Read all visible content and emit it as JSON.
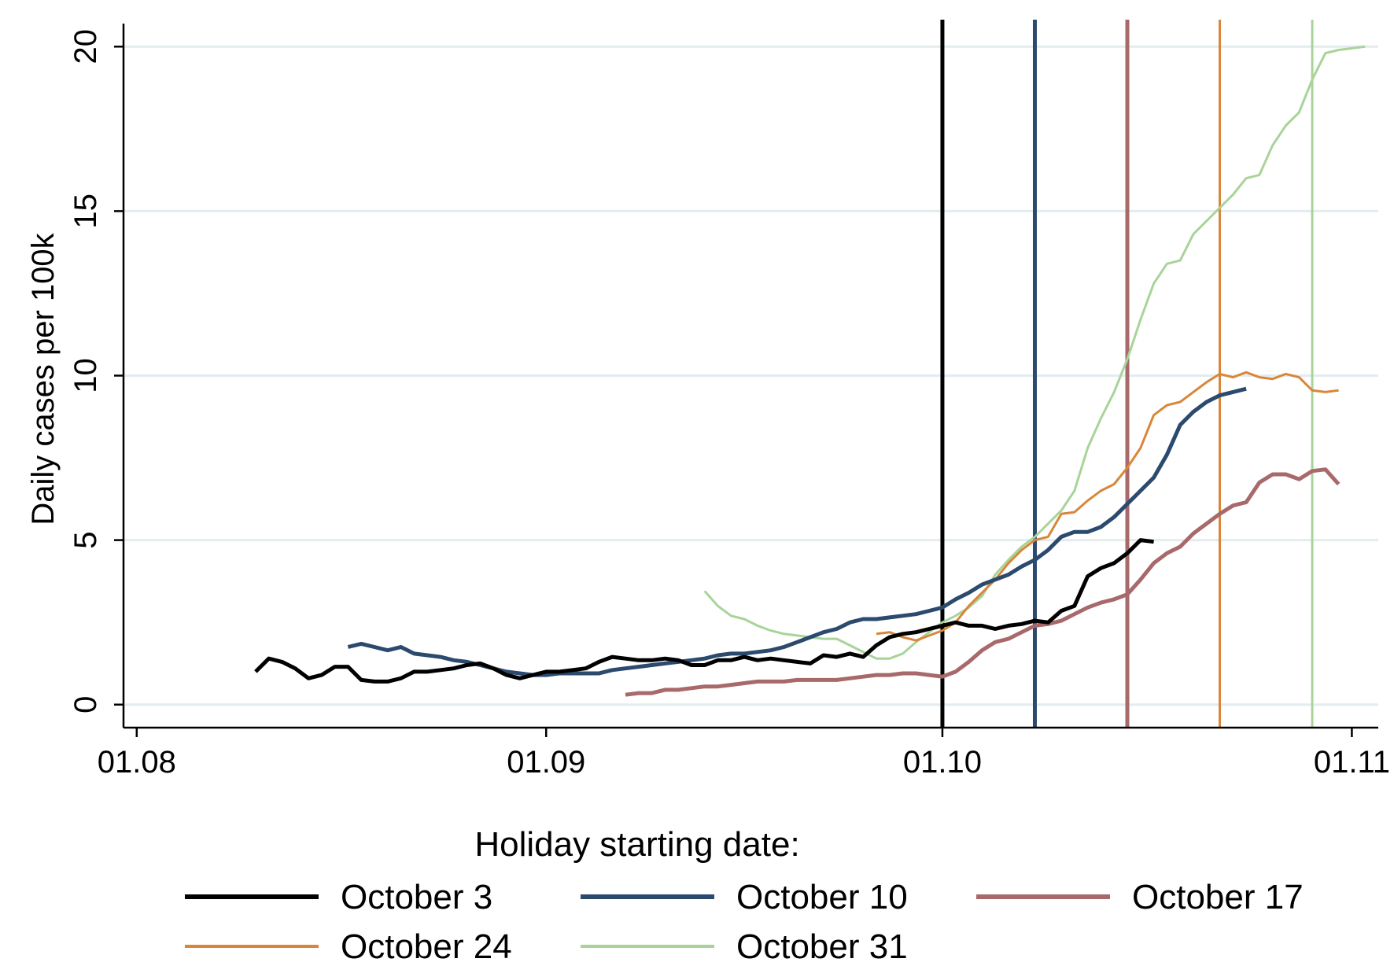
{
  "chart_data": {
    "type": "line",
    "title": "",
    "xlabel": "",
    "ylabel": "Daily cases per 100k",
    "x_ticks": [
      "01.08",
      "01.09",
      "01.10",
      "01.11"
    ],
    "xlim": [
      "2020-07-31",
      "2020-11-03"
    ],
    "ylim": [
      -0.7,
      20.7
    ],
    "y_ticks": [
      0,
      5,
      10,
      15,
      20
    ],
    "grid": "horizontal",
    "legend": {
      "title": "Holiday starting date:",
      "position": "bottom",
      "columns": 3
    },
    "vlines": [
      {
        "series": "October 3",
        "x": "2020-10-01"
      },
      {
        "series": "October 10",
        "x": "2020-10-08"
      },
      {
        "series": "October 17",
        "x": "2020-10-15"
      },
      {
        "series": "October 24",
        "x": "2020-10-22"
      },
      {
        "series": "October 31",
        "x": "2020-10-29"
      }
    ],
    "series": [
      {
        "name": "October 3",
        "color": "#000000",
        "width": 5,
        "x": [
          "2020-08-10",
          "2020-08-11",
          "2020-08-12",
          "2020-08-13",
          "2020-08-14",
          "2020-08-15",
          "2020-08-16",
          "2020-08-17",
          "2020-08-18",
          "2020-08-19",
          "2020-08-20",
          "2020-08-21",
          "2020-08-22",
          "2020-08-23",
          "2020-08-24",
          "2020-08-25",
          "2020-08-26",
          "2020-08-27",
          "2020-08-28",
          "2020-08-29",
          "2020-08-30",
          "2020-08-31",
          "2020-09-01",
          "2020-09-02",
          "2020-09-03",
          "2020-09-04",
          "2020-09-05",
          "2020-09-06",
          "2020-09-07",
          "2020-09-08",
          "2020-09-09",
          "2020-09-10",
          "2020-09-11",
          "2020-09-12",
          "2020-09-13",
          "2020-09-14",
          "2020-09-15",
          "2020-09-16",
          "2020-09-17",
          "2020-09-18",
          "2020-09-19",
          "2020-09-20",
          "2020-09-21",
          "2020-09-22",
          "2020-09-23",
          "2020-09-24",
          "2020-09-25",
          "2020-09-26",
          "2020-09-27",
          "2020-09-28",
          "2020-09-29",
          "2020-09-30",
          "2020-10-01",
          "2020-10-02",
          "2020-10-03",
          "2020-10-04",
          "2020-10-05",
          "2020-10-06",
          "2020-10-07",
          "2020-10-08",
          "2020-10-09",
          "2020-10-10",
          "2020-10-11",
          "2020-10-12",
          "2020-10-13",
          "2020-10-14",
          "2020-10-15",
          "2020-10-16",
          "2020-10-17"
        ],
        "y": [
          1.0,
          1.4,
          1.3,
          1.1,
          0.8,
          0.9,
          1.15,
          1.15,
          0.75,
          0.7,
          0.7,
          0.8,
          1.0,
          1.0,
          1.05,
          1.1,
          1.2,
          1.25,
          1.1,
          0.9,
          0.8,
          0.9,
          1.0,
          1.0,
          1.05,
          1.1,
          1.3,
          1.45,
          1.4,
          1.35,
          1.35,
          1.4,
          1.35,
          1.2,
          1.2,
          1.35,
          1.35,
          1.45,
          1.35,
          1.4,
          1.35,
          1.3,
          1.25,
          1.5,
          1.45,
          1.55,
          1.45,
          1.8,
          2.05,
          2.15,
          2.2,
          2.3,
          2.4,
          2.5,
          2.4,
          2.4,
          2.3,
          2.4,
          2.45,
          2.55,
          2.5,
          2.85,
          3.0,
          3.9,
          4.15,
          4.3,
          4.6,
          5.0,
          4.95
        ]
      },
      {
        "name": "October 10",
        "color": "#2b4a6e",
        "width": 5,
        "x": [
          "2020-08-17",
          "2020-08-18",
          "2020-08-19",
          "2020-08-20",
          "2020-08-21",
          "2020-08-22",
          "2020-08-23",
          "2020-08-24",
          "2020-08-25",
          "2020-08-26",
          "2020-08-27",
          "2020-08-28",
          "2020-08-29",
          "2020-08-30",
          "2020-08-31",
          "2020-09-01",
          "2020-09-02",
          "2020-09-03",
          "2020-09-04",
          "2020-09-05",
          "2020-09-06",
          "2020-09-07",
          "2020-09-08",
          "2020-09-09",
          "2020-09-10",
          "2020-09-11",
          "2020-09-12",
          "2020-09-13",
          "2020-09-14",
          "2020-09-15",
          "2020-09-16",
          "2020-09-17",
          "2020-09-18",
          "2020-09-19",
          "2020-09-20",
          "2020-09-21",
          "2020-09-22",
          "2020-09-23",
          "2020-09-24",
          "2020-09-25",
          "2020-09-26",
          "2020-09-27",
          "2020-09-28",
          "2020-09-29",
          "2020-09-30",
          "2020-10-01",
          "2020-10-02",
          "2020-10-03",
          "2020-10-04",
          "2020-10-05",
          "2020-10-06",
          "2020-10-07",
          "2020-10-08",
          "2020-10-09",
          "2020-10-10",
          "2020-10-11",
          "2020-10-12",
          "2020-10-13",
          "2020-10-14",
          "2020-10-15",
          "2020-10-16",
          "2020-10-17",
          "2020-10-18",
          "2020-10-19",
          "2020-10-20",
          "2020-10-21",
          "2020-10-22",
          "2020-10-23",
          "2020-10-24"
        ],
        "y": [
          1.75,
          1.85,
          1.75,
          1.65,
          1.75,
          1.55,
          1.5,
          1.45,
          1.35,
          1.3,
          1.2,
          1.1,
          1.0,
          0.95,
          0.9,
          0.9,
          0.95,
          0.95,
          0.95,
          0.95,
          1.05,
          1.1,
          1.15,
          1.2,
          1.25,
          1.3,
          1.35,
          1.4,
          1.5,
          1.55,
          1.55,
          1.6,
          1.65,
          1.75,
          1.9,
          2.05,
          2.2,
          2.3,
          2.5,
          2.6,
          2.6,
          2.65,
          2.7,
          2.75,
          2.85,
          2.95,
          3.2,
          3.4,
          3.65,
          3.8,
          3.95,
          4.2,
          4.4,
          4.7,
          5.1,
          5.25,
          5.25,
          5.4,
          5.7,
          6.1,
          6.5,
          6.9,
          7.6,
          8.5,
          8.9,
          9.2,
          9.4,
          9.5,
          9.6
        ]
      },
      {
        "name": "October 17",
        "color": "#a8696b",
        "width": 5,
        "x": [
          "2020-09-07",
          "2020-09-08",
          "2020-09-09",
          "2020-09-10",
          "2020-09-11",
          "2020-09-12",
          "2020-09-13",
          "2020-09-14",
          "2020-09-15",
          "2020-09-16",
          "2020-09-17",
          "2020-09-18",
          "2020-09-19",
          "2020-09-20",
          "2020-09-21",
          "2020-09-22",
          "2020-09-23",
          "2020-09-24",
          "2020-09-25",
          "2020-09-26",
          "2020-09-27",
          "2020-09-28",
          "2020-09-29",
          "2020-09-30",
          "2020-10-01",
          "2020-10-02",
          "2020-10-03",
          "2020-10-04",
          "2020-10-05",
          "2020-10-06",
          "2020-10-07",
          "2020-10-08",
          "2020-10-09",
          "2020-10-10",
          "2020-10-11",
          "2020-10-12",
          "2020-10-13",
          "2020-10-14",
          "2020-10-15",
          "2020-10-16",
          "2020-10-17",
          "2020-10-18",
          "2020-10-19",
          "2020-10-20",
          "2020-10-21",
          "2020-10-22",
          "2020-10-23",
          "2020-10-24",
          "2020-10-25",
          "2020-10-26",
          "2020-10-27",
          "2020-10-28",
          "2020-10-29",
          "2020-10-30",
          "2020-10-31"
        ],
        "y": [
          0.3,
          0.35,
          0.35,
          0.45,
          0.45,
          0.5,
          0.55,
          0.55,
          0.6,
          0.65,
          0.7,
          0.7,
          0.7,
          0.75,
          0.75,
          0.75,
          0.75,
          0.8,
          0.85,
          0.9,
          0.9,
          0.95,
          0.95,
          0.9,
          0.85,
          1.0,
          1.3,
          1.65,
          1.9,
          2.0,
          2.2,
          2.4,
          2.45,
          2.55,
          2.75,
          2.95,
          3.1,
          3.2,
          3.35,
          3.8,
          4.3,
          4.6,
          4.8,
          5.2,
          5.5,
          5.8,
          6.05,
          6.15,
          6.75,
          7.0,
          7.0,
          6.85,
          7.1,
          7.15,
          6.7
        ]
      },
      {
        "name": "October 24",
        "color": "#d9863a",
        "width": 3,
        "x": [
          "2020-09-26",
          "2020-09-27",
          "2020-09-28",
          "2020-09-29",
          "2020-09-30",
          "2020-10-01",
          "2020-10-02",
          "2020-10-03",
          "2020-10-04",
          "2020-10-05",
          "2020-10-06",
          "2020-10-07",
          "2020-10-08",
          "2020-10-09",
          "2020-10-10",
          "2020-10-11",
          "2020-10-12",
          "2020-10-13",
          "2020-10-14",
          "2020-10-15",
          "2020-10-16",
          "2020-10-17",
          "2020-10-18",
          "2020-10-19",
          "2020-10-20",
          "2020-10-21",
          "2020-10-22",
          "2020-10-23",
          "2020-10-24",
          "2020-10-25",
          "2020-10-26",
          "2020-10-27",
          "2020-10-28",
          "2020-10-29",
          "2020-10-30",
          "2020-10-31"
        ],
        "y": [
          2.15,
          2.2,
          2.05,
          1.95,
          2.1,
          2.25,
          2.5,
          3.0,
          3.4,
          3.8,
          4.3,
          4.7,
          5.0,
          5.1,
          5.8,
          5.85,
          6.2,
          6.5,
          6.7,
          7.2,
          7.8,
          8.8,
          9.1,
          9.2,
          9.5,
          9.8,
          10.05,
          9.95,
          10.1,
          9.95,
          9.9,
          10.05,
          9.95,
          9.55,
          9.5,
          9.55
        ]
      },
      {
        "name": "October 31",
        "color": "#a8d49a",
        "width": 3,
        "x": [
          "2020-09-13",
          "2020-09-14",
          "2020-09-15",
          "2020-09-16",
          "2020-09-17",
          "2020-09-18",
          "2020-09-19",
          "2020-09-20",
          "2020-09-21",
          "2020-09-22",
          "2020-09-23",
          "2020-09-24",
          "2020-09-25",
          "2020-09-26",
          "2020-09-27",
          "2020-09-28",
          "2020-09-29",
          "2020-09-30",
          "2020-10-01",
          "2020-10-02",
          "2020-10-03",
          "2020-10-04",
          "2020-10-05",
          "2020-10-06",
          "2020-10-07",
          "2020-10-08",
          "2020-10-09",
          "2020-10-10",
          "2020-10-11",
          "2020-10-12",
          "2020-10-13",
          "2020-10-14",
          "2020-10-15",
          "2020-10-16",
          "2020-10-17",
          "2020-10-18",
          "2020-10-19",
          "2020-10-20",
          "2020-10-21",
          "2020-10-22",
          "2020-10-23",
          "2020-10-24",
          "2020-10-25",
          "2020-10-26",
          "2020-10-27",
          "2020-10-28",
          "2020-10-29",
          "2020-10-30",
          "2020-10-31",
          "2020-11-01",
          "2020-11-02"
        ],
        "y": [
          3.45,
          3.0,
          2.7,
          2.6,
          2.4,
          2.25,
          2.15,
          2.1,
          2.05,
          2.0,
          2.0,
          1.8,
          1.6,
          1.4,
          1.4,
          1.55,
          1.9,
          2.2,
          2.5,
          2.7,
          2.95,
          3.3,
          3.95,
          4.4,
          4.8,
          5.1,
          5.5,
          5.9,
          6.5,
          7.8,
          8.7,
          9.5,
          10.5,
          11.7,
          12.8,
          13.4,
          13.5,
          14.3,
          14.7,
          15.1,
          15.5,
          16.0,
          16.1,
          17.0,
          17.6,
          18.0,
          19.0,
          19.8,
          19.9,
          19.95,
          20.0
        ]
      }
    ]
  }
}
